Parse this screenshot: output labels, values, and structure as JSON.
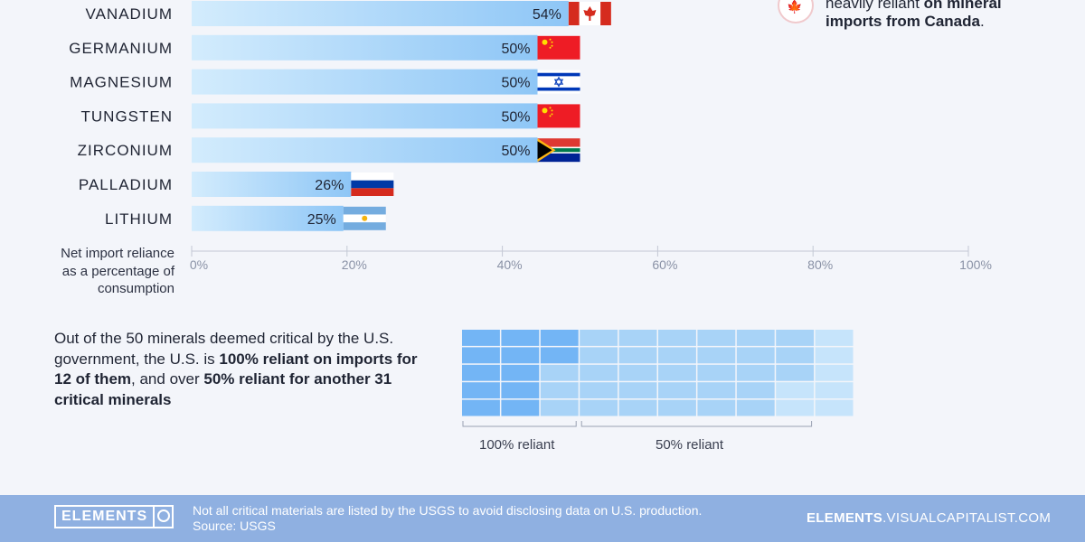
{
  "chart_data": {
    "type": "bar",
    "orientation": "horizontal",
    "categories": [
      "VANADIUM",
      "GERMANIUM",
      "MAGNESIUM",
      "TUNGSTEN",
      "ZIRCONIUM",
      "PALLADIUM",
      "LITHIUM"
    ],
    "values": [
      54,
      50,
      50,
      50,
      50,
      26,
      25
    ],
    "value_labels": [
      "54%",
      "50%",
      "50%",
      "50%",
      "50%",
      "26%",
      "25%"
    ],
    "flags": [
      "canada-flag",
      "china-flag",
      "israel-flag",
      "china-flag",
      "south-africa-flag",
      "russia-flag",
      "argentina-flag"
    ],
    "x_ticks": [
      "0%",
      "20%",
      "40%",
      "60%",
      "80%",
      "100%"
    ],
    "xlim": [
      0,
      100
    ],
    "xlabel_lines": [
      "Net import reliance",
      "as a percentage of",
      "consumption"
    ],
    "grid": false,
    "bar_color_start": "#d3ecfd",
    "bar_color_end": "#8ec6f6"
  },
  "note": {
    "plain": "heavily reliant ",
    "bold_1": "on mineral",
    "bold_2": "imports from Canada",
    "tail": ".",
    "icon": "canada-flag-icon"
  },
  "summary": {
    "part1": "Out of the 50 minerals deemed critical by the U.S. government, the U.S. is ",
    "bold1": "100% reliant on imports for 12 of them",
    "part2": ", and over ",
    "bold2": "50% reliant for another 31 critical minerals"
  },
  "grid_chart": {
    "total": 50,
    "reliant_100": 12,
    "reliant_50": 31,
    "label_100": "100% reliant",
    "label_50": "50% reliant",
    "colors": {
      "full": "#73b5f5",
      "half": "#a8d3f7",
      "rest": "#c6e4fb"
    }
  },
  "footer": {
    "logo": "ELEMENTS",
    "logo_icon": "vc-logo-icon",
    "note_line1": "Not all critical materials are listed by the USGS to avoid disclosing data on U.S. production.",
    "note_line2": "Source: USGS",
    "site_bold": "ELEMENTS",
    "site_rest": ".VISUALCAPITALIST.COM",
    "bg_color": "#8fb0e1"
  }
}
